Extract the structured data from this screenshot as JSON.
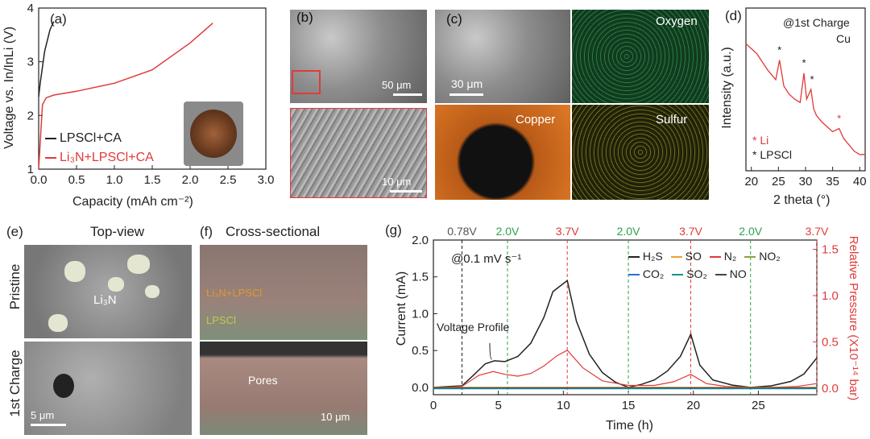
{
  "panels": {
    "a": {
      "label": "(a)",
      "ylabel": "Voltage vs. In/InLi (V)",
      "xlabel": "Capacity (mAh cm⁻²)",
      "legend": [
        "LPSCl+CA",
        "Li₃N+LPSCl+CA"
      ]
    },
    "b": {
      "label": "(b)",
      "scale1": "50 μm",
      "scale2": "10 μm"
    },
    "c": {
      "label": "(c)",
      "scale": "30 μm",
      "maps": [
        "Oxygen",
        "Copper",
        "Sulfur"
      ]
    },
    "d": {
      "label": "(d)",
      "ylabel": "Intensity (a.u.)",
      "xlabel": "2 theta (°)",
      "note1": "@1st Charge",
      "note2": "Cu",
      "legend_li": "* Li",
      "legend_lpscl": "* LPSCl"
    },
    "e": {
      "label": "(e)",
      "title": "Top-view",
      "row1": "Pristine",
      "row2": "1st Charge",
      "annot": "Li₃N",
      "scale": "5 μm"
    },
    "f": {
      "label": "(f)",
      "title": "Cross-sectional",
      "layer1": "Li₃N+LPSCl",
      "layer2": "LPSCl",
      "annot": "Pores",
      "scale": "10 μm"
    },
    "g": {
      "label": "(g)",
      "ylabel": "Current (mA)",
      "y2label": "Relative Pressure (X10⁻¹⁴ bar)",
      "xlabel": "Time (h)",
      "rate": "@0.1 mV s⁻¹",
      "profile": "Voltage Profile",
      "voltages": [
        "0.78V",
        "2.0V",
        "3.7V",
        "2.0V",
        "3.7V",
        "2.0V",
        "3.7V"
      ],
      "legend": [
        "H₂S",
        "SO",
        "N₂",
        "NO₂",
        "CO₂",
        "SO₂",
        "NO"
      ]
    }
  },
  "colors": {
    "red": "#e03a3a",
    "black": "#222222",
    "green": "#2aa34a",
    "blue": "#2b6fd6",
    "orange": "#f0a030",
    "olive": "#8ea040",
    "teal": "#1b8f8f"
  },
  "chart_data": [
    {
      "type": "line",
      "panel": "a",
      "xlabel": "Capacity (mAh cm⁻²)",
      "ylabel": "Voltage vs. In/InLi (V)",
      "xlim": [
        0,
        3.0
      ],
      "ylim": [
        1,
        4
      ],
      "xticks": [
        "0.0",
        "0.5",
        "1.0",
        "1.5",
        "2.0",
        "2.5",
        "3.0"
      ],
      "yticks": [
        "1",
        "2",
        "3",
        "4"
      ],
      "series": [
        {
          "name": "LPSCl+CA",
          "x": [
            0,
            0.02,
            0.08,
            0.15,
            0.2
          ],
          "y": [
            2.35,
            2.6,
            3.2,
            3.6,
            3.75
          ]
        },
        {
          "name": "Li₃N+LPSCl+CA",
          "x": [
            0,
            0.05,
            0.1,
            0.2,
            0.5,
            1.0,
            1.5,
            2.0,
            2.3
          ],
          "y": [
            1.0,
            2.2,
            2.33,
            2.38,
            2.45,
            2.6,
            2.85,
            3.35,
            3.72
          ]
        }
      ]
    },
    {
      "type": "line",
      "panel": "d",
      "xlabel": "2 theta (°)",
      "ylabel": "Intensity (a.u.)",
      "xlim": [
        19,
        41
      ],
      "xticks": [
        "20",
        "25",
        "30",
        "35",
        "40"
      ],
      "series": [
        {
          "name": "",
          "x": [
            19,
            21,
            23,
            24.5,
            25.2,
            26,
            27,
            28,
            29,
            29.7,
            30.2,
            31,
            31.5,
            32,
            33,
            34,
            35,
            36.2,
            37,
            38,
            39,
            40,
            41
          ],
          "y": [
            0.78,
            0.72,
            0.62,
            0.56,
            0.68,
            0.52,
            0.47,
            0.44,
            0.42,
            0.6,
            0.44,
            0.5,
            0.38,
            0.34,
            0.3,
            0.27,
            0.24,
            0.26,
            0.2,
            0.16,
            0.12,
            0.1,
            0.1
          ]
        }
      ]
    },
    {
      "type": "line",
      "panel": "g",
      "xlabel": "Time (h)",
      "ylabel": "Current (mA)",
      "xlim": [
        0,
        29.5
      ],
      "ylim": [
        -0.1,
        2.0
      ],
      "y2lim": [
        -0.07,
        1.6
      ],
      "xticks": [
        "0",
        "5",
        "10",
        "15",
        "20",
        "25"
      ],
      "yticks": [
        "0.0",
        "0.5",
        "1.0",
        "1.5",
        "2.0"
      ],
      "y2ticks": [
        "0.0",
        "0.5",
        "1.0",
        "1.5"
      ],
      "vlines": [
        2.2,
        5.7,
        10.3,
        15.0,
        19.8,
        24.4,
        29.5
      ],
      "series": [
        {
          "name": "H₂S",
          "x": [
            0,
            2.2,
            3,
            4,
            4.7,
            5.5,
            6.5,
            7.5,
            8.5,
            9.2,
            10.3,
            11,
            12,
            13,
            14,
            15,
            16,
            17,
            18,
            19,
            19.8,
            20.5,
            21.5,
            23,
            24.4,
            26,
            27.5,
            28.5,
            29.5
          ],
          "y": [
            0,
            0.02,
            0.15,
            0.32,
            0.36,
            0.35,
            0.42,
            0.6,
            0.95,
            1.3,
            1.45,
            0.9,
            0.45,
            0.2,
            0.07,
            0.0,
            0.04,
            0.1,
            0.22,
            0.42,
            0.72,
            0.3,
            0.1,
            0.03,
            0.0,
            0.02,
            0.08,
            0.18,
            0.4
          ]
        },
        {
          "name": "N₂",
          "x": [
            0,
            2.2,
            3.5,
            4.6,
            5.5,
            6.5,
            7.5,
            8.5,
            9.5,
            10.3,
            11.5,
            13,
            15,
            17,
            18.5,
            19.8,
            21,
            22.5,
            24.4,
            26,
            28,
            29.5
          ],
          "y": [
            0,
            0.02,
            0.14,
            0.18,
            0.15,
            0.13,
            0.16,
            0.24,
            0.35,
            0.41,
            0.22,
            0.08,
            0.03,
            0.03,
            0.07,
            0.15,
            0.05,
            0.02,
            0.01,
            0.01,
            0.02,
            0.05
          ]
        },
        {
          "name": "SO",
          "x": [
            0,
            29.5
          ],
          "y": [
            0,
            0
          ]
        },
        {
          "name": "NO₂",
          "x": [
            0,
            29.5
          ],
          "y": [
            -0.01,
            -0.01
          ]
        },
        {
          "name": "CO₂",
          "x": [
            0,
            29.5
          ],
          "y": [
            -0.015,
            -0.015
          ]
        },
        {
          "name": "SO₂",
          "x": [
            0,
            29.5
          ],
          "y": [
            -0.02,
            -0.02
          ]
        },
        {
          "name": "NO",
          "x": [
            0,
            29.5
          ],
          "y": [
            -0.005,
            -0.005
          ]
        }
      ]
    }
  ]
}
